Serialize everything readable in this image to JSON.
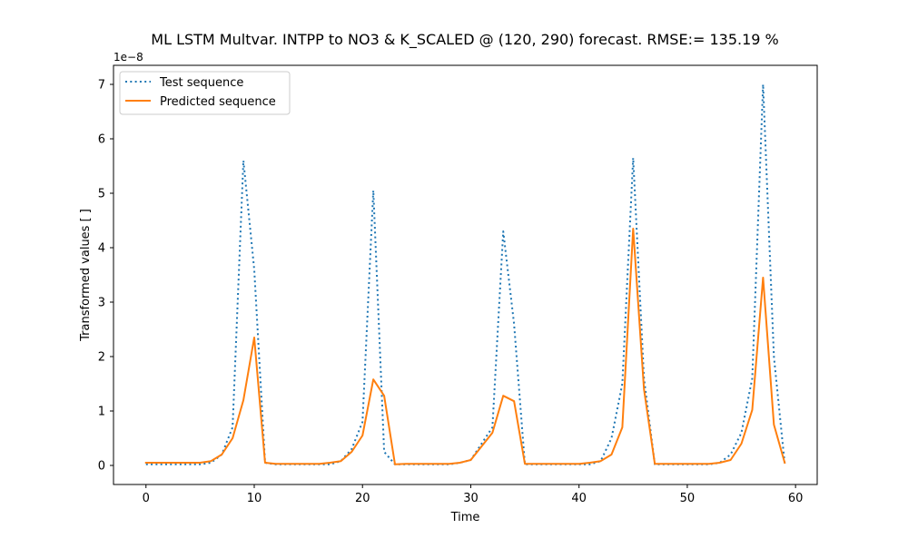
{
  "chart_data": {
    "type": "line",
    "title": "ML LSTM Multvar. INTPP to NO3 &  K_SCALED @ (120, 290) forecast. RMSE:=  135.19 %",
    "xlabel": "Time",
    "ylabel": "Transformed values [ ]",
    "y_offset_label": "1e−8",
    "xlim": [
      -3,
      62
    ],
    "ylim": [
      -0.35,
      7.35
    ],
    "x_ticks": [
      0,
      10,
      20,
      30,
      40,
      50,
      60
    ],
    "y_ticks": [
      0,
      1,
      2,
      3,
      4,
      5,
      6,
      7
    ],
    "x_tick_labels": [
      "0",
      "10",
      "20",
      "30",
      "40",
      "50",
      "60"
    ],
    "y_tick_labels": [
      "0",
      "1",
      "2",
      "3",
      "4",
      "5",
      "6",
      "7"
    ],
    "legend_position": "upper-left",
    "grid": false,
    "x": [
      0,
      1,
      2,
      3,
      4,
      5,
      6,
      7,
      8,
      9,
      10,
      11,
      12,
      13,
      14,
      15,
      16,
      17,
      18,
      19,
      20,
      21,
      22,
      23,
      24,
      25,
      26,
      27,
      28,
      29,
      30,
      31,
      32,
      33,
      34,
      35,
      36,
      37,
      38,
      39,
      40,
      41,
      42,
      43,
      44,
      45,
      46,
      47,
      48,
      49,
      50,
      51,
      52,
      53,
      54,
      55,
      56,
      57,
      58,
      59
    ],
    "series": [
      {
        "name": "Test sequence",
        "style": "dotted",
        "color": "#1f77b4",
        "values": [
          0.02,
          0.02,
          0.02,
          0.02,
          0.02,
          0.02,
          0.05,
          0.2,
          0.7,
          5.6,
          3.6,
          0.05,
          0.02,
          0.02,
          0.02,
          0.02,
          0.02,
          0.02,
          0.08,
          0.3,
          0.8,
          5.05,
          0.25,
          0.02,
          0.02,
          0.02,
          0.02,
          0.02,
          0.02,
          0.05,
          0.1,
          0.4,
          0.7,
          4.3,
          2.6,
          0.02,
          0.02,
          0.02,
          0.02,
          0.02,
          0.02,
          0.02,
          0.08,
          0.5,
          1.5,
          5.65,
          1.6,
          0.02,
          0.02,
          0.02,
          0.02,
          0.02,
          0.02,
          0.05,
          0.2,
          0.6,
          1.6,
          7.0,
          2.0,
          0.03
        ]
      },
      {
        "name": "Predicted sequence",
        "style": "solid",
        "color": "#ff7f0e",
        "values": [
          0.05,
          0.05,
          0.05,
          0.05,
          0.05,
          0.05,
          0.08,
          0.2,
          0.5,
          1.2,
          2.35,
          0.05,
          0.03,
          0.03,
          0.03,
          0.03,
          0.03,
          0.05,
          0.08,
          0.25,
          0.55,
          1.58,
          1.28,
          0.02,
          0.03,
          0.03,
          0.03,
          0.03,
          0.03,
          0.05,
          0.1,
          0.35,
          0.6,
          1.28,
          1.18,
          0.03,
          0.03,
          0.03,
          0.03,
          0.03,
          0.03,
          0.05,
          0.08,
          0.2,
          0.7,
          4.35,
          1.4,
          0.03,
          0.03,
          0.03,
          0.03,
          0.03,
          0.03,
          0.05,
          0.1,
          0.4,
          1.02,
          3.45,
          0.75,
          0.05
        ]
      }
    ]
  }
}
